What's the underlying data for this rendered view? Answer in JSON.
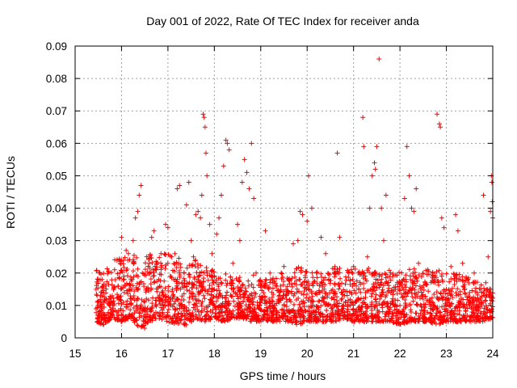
{
  "chart_data": {
    "type": "scatter",
    "title": "Day 001 of 2022, Rate Of TEC Index for receiver anda",
    "xlabel": "GPS time / hours",
    "ylabel": "ROTI / TECUs",
    "xlim": [
      15,
      24
    ],
    "ylim": [
      0,
      0.09
    ],
    "x_ticks": [
      "15",
      "16",
      "17",
      "18",
      "19",
      "20",
      "21",
      "22",
      "23",
      "24"
    ],
    "y_ticks": [
      "0",
      "0.01",
      "0.02",
      "0.03",
      "0.04",
      "0.05",
      "0.06",
      "0.07",
      "0.08",
      "0.09"
    ],
    "grid": true,
    "marker": "plus",
    "color": "#ff0000",
    "series": [
      {
        "points": [
          [
            15.45,
            0.015
          ],
          [
            15.48,
            0.011
          ],
          [
            15.5,
            0.018
          ],
          [
            15.52,
            0.02
          ],
          [
            15.55,
            0.013
          ],
          [
            15.58,
            0.009
          ],
          [
            15.6,
            0.016
          ],
          [
            15.63,
            0.007
          ],
          [
            15.66,
            0.012
          ],
          [
            15.7,
            0.005
          ],
          [
            15.75,
            0.01
          ],
          [
            15.8,
            0.013
          ],
          [
            15.85,
            0.021
          ],
          [
            15.9,
            0.008
          ],
          [
            15.95,
            0.024
          ],
          [
            16.0,
            0.031
          ],
          [
            16.05,
            0.019
          ],
          [
            16.1,
            0.027
          ],
          [
            16.15,
            0.026
          ],
          [
            16.2,
            0.012
          ],
          [
            16.25,
            0.03
          ],
          [
            16.3,
            0.037
          ],
          [
            16.35,
            0.039
          ],
          [
            16.38,
            0.044
          ],
          [
            16.42,
            0.047
          ],
          [
            16.45,
            0.02
          ],
          [
            16.5,
            0.003
          ],
          [
            16.55,
            0.008
          ],
          [
            16.6,
            0.023
          ],
          [
            16.65,
            0.031
          ],
          [
            16.7,
            0.033
          ],
          [
            16.75,
            0.021
          ],
          [
            16.8,
            0.018
          ],
          [
            16.85,
            0.026
          ],
          [
            16.9,
            0.013
          ],
          [
            16.95,
            0.035
          ],
          [
            17.0,
            0.034
          ],
          [
            17.05,
            0.019
          ],
          [
            17.1,
            0.015
          ],
          [
            17.15,
            0.026
          ],
          [
            17.2,
            0.046
          ],
          [
            17.25,
            0.047
          ],
          [
            17.3,
            0.017
          ],
          [
            17.35,
            0.02
          ],
          [
            17.4,
            0.041
          ],
          [
            17.45,
            0.048
          ],
          [
            17.5,
            0.03
          ],
          [
            17.55,
            0.025
          ],
          [
            17.6,
            0.038
          ],
          [
            17.65,
            0.039
          ],
          [
            17.7,
            0.037
          ],
          [
            17.73,
            0.044
          ],
          [
            17.76,
            0.069
          ],
          [
            17.78,
            0.068
          ],
          [
            17.8,
            0.065
          ],
          [
            17.82,
            0.057
          ],
          [
            17.84,
            0.05
          ],
          [
            17.9,
            0.035
          ],
          [
            17.95,
            0.026
          ],
          [
            18.0,
            0.015
          ],
          [
            18.05,
            0.032
          ],
          [
            18.1,
            0.037
          ],
          [
            18.15,
            0.044
          ],
          [
            18.2,
            0.053
          ],
          [
            18.25,
            0.061
          ],
          [
            18.28,
            0.06
          ],
          [
            18.32,
            0.058
          ],
          [
            18.4,
            0.023
          ],
          [
            18.5,
            0.035
          ],
          [
            18.55,
            0.03
          ],
          [
            18.6,
            0.048
          ],
          [
            18.65,
            0.055
          ],
          [
            18.7,
            0.051
          ],
          [
            18.75,
            0.046
          ],
          [
            18.8,
            0.06
          ],
          [
            18.85,
            0.043
          ],
          [
            18.9,
            0.02
          ],
          [
            19.0,
            0.012
          ],
          [
            19.1,
            0.033
          ],
          [
            19.2,
            0.02
          ],
          [
            19.3,
            0.009
          ],
          [
            19.4,
            0.011
          ],
          [
            19.5,
            0.022
          ],
          [
            19.6,
            0.018
          ],
          [
            19.7,
            0.029
          ],
          [
            19.8,
            0.03
          ],
          [
            19.85,
            0.039
          ],
          [
            19.9,
            0.038
          ],
          [
            20.0,
            0.036
          ],
          [
            20.03,
            0.05
          ],
          [
            20.1,
            0.04
          ],
          [
            20.2,
            0.02
          ],
          [
            20.3,
            0.031
          ],
          [
            20.4,
            0.026
          ],
          [
            20.5,
            0.01
          ],
          [
            20.6,
            0.022
          ],
          [
            20.65,
            0.057
          ],
          [
            20.7,
            0.031
          ],
          [
            20.8,
            0.013
          ],
          [
            20.9,
            0.02
          ],
          [
            21.0,
            0.022
          ],
          [
            21.1,
            0.02
          ],
          [
            21.2,
            0.068
          ],
          [
            21.22,
            0.059
          ],
          [
            21.3,
            0.025
          ],
          [
            21.35,
            0.04
          ],
          [
            21.4,
            0.05
          ],
          [
            21.45,
            0.054
          ],
          [
            21.47,
            0.052
          ],
          [
            21.5,
            0.059
          ],
          [
            21.55,
            0.086
          ],
          [
            21.6,
            0.04
          ],
          [
            21.65,
            0.03
          ],
          [
            21.7,
            0.044
          ],
          [
            21.8,
            0.02
          ],
          [
            21.9,
            0.015
          ],
          [
            22.0,
            0.01
          ],
          [
            22.1,
            0.043
          ],
          [
            22.15,
            0.059
          ],
          [
            22.2,
            0.05
          ],
          [
            22.25,
            0.04
          ],
          [
            22.3,
            0.039
          ],
          [
            22.35,
            0.046
          ],
          [
            22.4,
            0.023
          ],
          [
            22.5,
            0.012
          ],
          [
            22.6,
            0.021
          ],
          [
            22.7,
            0.02
          ],
          [
            22.8,
            0.069
          ],
          [
            22.85,
            0.066
          ],
          [
            22.87,
            0.065
          ],
          [
            22.9,
            0.037
          ],
          [
            22.95,
            0.034
          ],
          [
            23.0,
            0.015
          ],
          [
            23.1,
            0.022
          ],
          [
            23.2,
            0.038
          ],
          [
            23.25,
            0.033
          ],
          [
            23.35,
            0.023
          ],
          [
            23.5,
            0.014
          ],
          [
            23.6,
            0.02
          ],
          [
            23.7,
            0.009
          ],
          [
            23.8,
            0.044
          ],
          [
            23.85,
            0.017
          ],
          [
            23.9,
            0.025
          ],
          [
            23.95,
            0.039
          ],
          [
            23.97,
            0.05
          ],
          [
            23.98,
            0.048
          ],
          [
            24.0,
            0.037
          ],
          [
            23.99,
            0.042
          ]
        ],
        "band": [
          [
            15.45,
            0.005,
            0.021
          ],
          [
            15.6,
            0.004,
            0.02
          ],
          [
            15.8,
            0.006,
            0.024
          ],
          [
            16.0,
            0.005,
            0.025
          ],
          [
            16.2,
            0.006,
            0.026
          ],
          [
            16.4,
            0.003,
            0.025
          ],
          [
            16.6,
            0.005,
            0.027
          ],
          [
            16.8,
            0.006,
            0.026
          ],
          [
            17.0,
            0.005,
            0.026
          ],
          [
            17.2,
            0.004,
            0.025
          ],
          [
            17.4,
            0.004,
            0.023
          ],
          [
            17.6,
            0.006,
            0.024
          ],
          [
            17.8,
            0.005,
            0.022
          ],
          [
            18.0,
            0.006,
            0.021
          ],
          [
            18.2,
            0.005,
            0.02
          ],
          [
            18.4,
            0.006,
            0.02
          ],
          [
            18.6,
            0.006,
            0.019
          ],
          [
            18.8,
            0.005,
            0.02
          ],
          [
            19.0,
            0.005,
            0.018
          ],
          [
            19.2,
            0.005,
            0.018
          ],
          [
            19.4,
            0.005,
            0.02
          ],
          [
            19.6,
            0.005,
            0.021
          ],
          [
            19.8,
            0.004,
            0.022
          ],
          [
            20.0,
            0.005,
            0.021
          ],
          [
            20.2,
            0.005,
            0.021
          ],
          [
            20.4,
            0.005,
            0.02
          ],
          [
            20.6,
            0.005,
            0.022
          ],
          [
            20.8,
            0.006,
            0.021
          ],
          [
            21.0,
            0.005,
            0.022
          ],
          [
            21.2,
            0.005,
            0.021
          ],
          [
            21.4,
            0.005,
            0.022
          ],
          [
            21.6,
            0.005,
            0.021
          ],
          [
            21.8,
            0.005,
            0.021
          ],
          [
            22.0,
            0.004,
            0.021
          ],
          [
            22.2,
            0.005,
            0.022
          ],
          [
            22.4,
            0.005,
            0.021
          ],
          [
            22.6,
            0.005,
            0.021
          ],
          [
            22.8,
            0.004,
            0.021
          ],
          [
            23.0,
            0.005,
            0.02
          ],
          [
            23.2,
            0.005,
            0.02
          ],
          [
            23.4,
            0.005,
            0.019
          ],
          [
            23.6,
            0.005,
            0.018
          ],
          [
            23.8,
            0.005,
            0.016
          ],
          [
            24.0,
            0.006,
            0.015
          ]
        ]
      }
    ]
  }
}
